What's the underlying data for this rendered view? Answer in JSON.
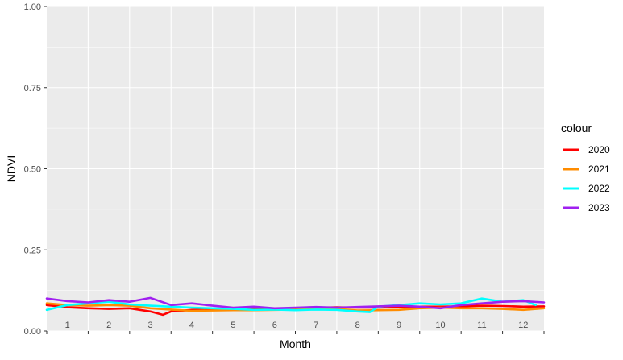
{
  "chart_data": {
    "type": "line",
    "xlabel": "Month",
    "ylabel": "NDVI",
    "ylim": [
      0,
      1
    ],
    "yticks": [
      "0.00",
      "0.25",
      "0.50",
      "0.75",
      "1.00"
    ],
    "ytick_values": [
      0,
      0.25,
      0.5,
      0.75,
      1.0
    ],
    "xlim": [
      0.5,
      12.5
    ],
    "months": [
      "1",
      "2",
      "3",
      "4",
      "5",
      "6",
      "7",
      "8",
      "9",
      "10",
      "11",
      "12"
    ],
    "grid": true,
    "panel_background": "#ebebeb",
    "legend_title": "colour",
    "legend_position": "right",
    "series": [
      {
        "name": "2020",
        "color": "#ff0000",
        "x": [
          0.5,
          1.0,
          1.5,
          2.0,
          2.5,
          3.0,
          3.3,
          3.5,
          4.0,
          4.5,
          5.0,
          5.5,
          6.0,
          6.5,
          7.0,
          7.5,
          8.0,
          8.5,
          9.0,
          9.5,
          10.0,
          10.5,
          11.0,
          11.5,
          12.0,
          12.5
        ],
        "y": [
          0.08,
          0.073,
          0.07,
          0.068,
          0.07,
          0.06,
          0.05,
          0.06,
          0.065,
          0.066,
          0.067,
          0.068,
          0.069,
          0.07,
          0.072,
          0.073,
          0.072,
          0.072,
          0.074,
          0.075,
          0.075,
          0.076,
          0.078,
          0.077,
          0.075,
          0.076
        ]
      },
      {
        "name": "2021",
        "color": "#ff8c00",
        "x": [
          0.5,
          1.0,
          1.5,
          2.0,
          2.5,
          3.0,
          3.5,
          4.0,
          4.5,
          5.0,
          5.5,
          6.0,
          6.5,
          7.0,
          7.5,
          8.0,
          8.5,
          9.0,
          9.5,
          10.0,
          10.5,
          11.0,
          11.5,
          12.0,
          12.5
        ],
        "y": [
          0.085,
          0.08,
          0.078,
          0.08,
          0.078,
          0.07,
          0.066,
          0.062,
          0.063,
          0.064,
          0.064,
          0.065,
          0.066,
          0.068,
          0.068,
          0.063,
          0.064,
          0.065,
          0.07,
          0.072,
          0.07,
          0.07,
          0.068,
          0.065,
          0.07
        ]
      },
      {
        "name": "2022",
        "color": "#00ffff",
        "x": [
          0.5,
          1.0,
          1.5,
          2.0,
          2.5,
          3.0,
          3.5,
          4.0,
          4.5,
          5.0,
          5.5,
          6.0,
          6.5,
          7.0,
          7.5,
          8.0,
          8.3,
          8.5,
          9.0,
          9.5,
          10.0,
          10.5,
          11.0,
          11.5,
          12.0,
          12.3
        ],
        "y": [
          0.065,
          0.08,
          0.085,
          0.09,
          0.082,
          0.078,
          0.075,
          0.072,
          0.07,
          0.068,
          0.065,
          0.066,
          0.064,
          0.066,
          0.065,
          0.06,
          0.058,
          0.075,
          0.08,
          0.085,
          0.082,
          0.085,
          0.1,
          0.09,
          0.095,
          0.08
        ]
      },
      {
        "name": "2023",
        "color": "#a020f0",
        "x": [
          0.5,
          1.0,
          1.5,
          2.0,
          2.5,
          3.0,
          3.5,
          4.0,
          4.5,
          5.0,
          5.5,
          6.0,
          6.5,
          7.0,
          7.5,
          8.0,
          8.5,
          9.0,
          9.5,
          10.0,
          10.5,
          11.0,
          11.5,
          12.0,
          12.5
        ],
        "y": [
          0.1,
          0.092,
          0.088,
          0.095,
          0.09,
          0.102,
          0.08,
          0.085,
          0.078,
          0.072,
          0.075,
          0.07,
          0.072,
          0.074,
          0.072,
          0.074,
          0.076,
          0.078,
          0.075,
          0.07,
          0.08,
          0.085,
          0.09,
          0.092,
          0.088
        ]
      }
    ]
  }
}
